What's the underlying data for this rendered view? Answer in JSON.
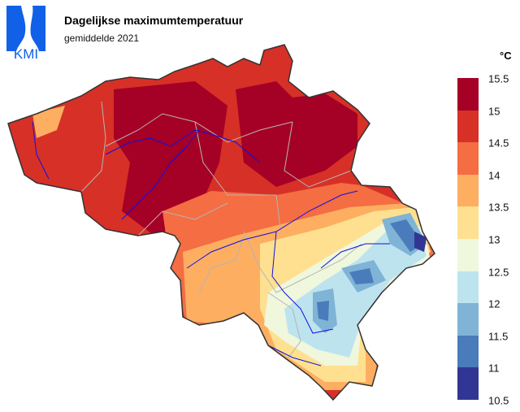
{
  "header": {
    "logo_text": "KMI",
    "title": "Dagelijkse maximumtemperatuur",
    "subtitle": "gemiddelde 2021"
  },
  "legend": {
    "unit": "°C",
    "ticks": [
      "15.5",
      "15",
      "14.5",
      "14",
      "13.5",
      "13",
      "12.5",
      "12",
      "11.5",
      "11",
      "10.5"
    ],
    "colors": [
      "#a50026",
      "#d73027",
      "#f46d43",
      "#fdae61",
      "#fee090",
      "#eff7dd",
      "#bde3ee",
      "#7fb4d6",
      "#4a7bba",
      "#313695"
    ]
  },
  "map": {
    "region": "Belgium",
    "border_color": "#333333",
    "province_border_color": "#b0b0b0",
    "river_color": "#1010e0"
  }
}
